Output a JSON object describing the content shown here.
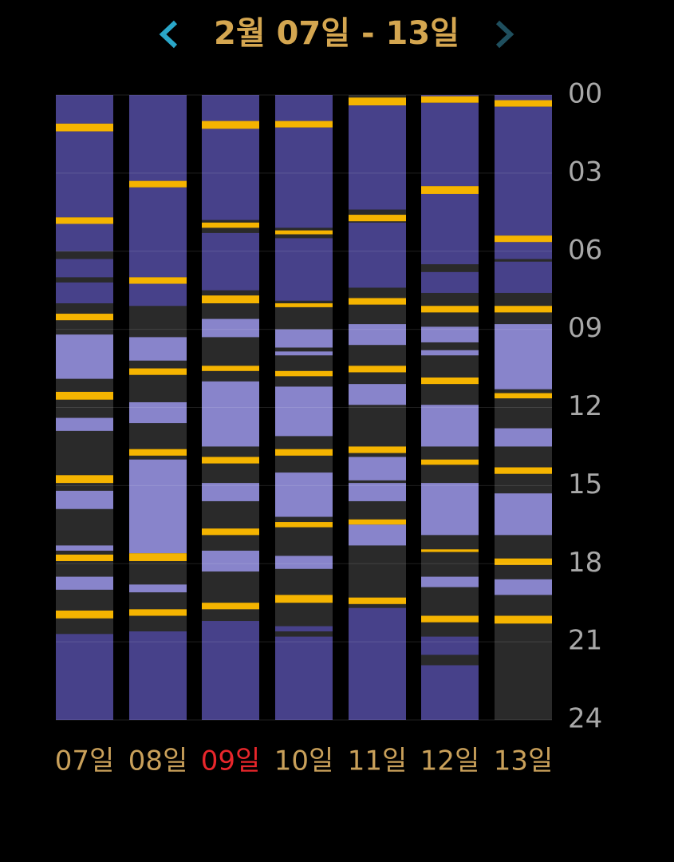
{
  "chart_data": {
    "type": "timeline",
    "title": "2월 07일 - 13일",
    "categories": [
      "07일",
      "08일",
      "09일",
      "10일",
      "11일",
      "12일",
      "13일"
    ],
    "label_colors": [
      "#c9a05a",
      "#c9a05a",
      "#e8262b",
      "#c9a05a",
      "#c9a05a",
      "#c9a05a",
      "#c9a05a"
    ],
    "background_color": "#2a2a2a",
    "colors": [
      "#47418a",
      "#8884cb",
      "#f5b400"
    ],
    "ylim": [
      0,
      24
    ],
    "yticks": [
      {
        "value": 0,
        "label": "00"
      },
      {
        "value": 3,
        "label": "03"
      },
      {
        "value": 6,
        "label": "06"
      },
      {
        "value": 9,
        "label": "09"
      },
      12,
      15,
      18,
      21,
      24
    ],
    "grid": true,
    "segments": [
      [
        [
          0,
          1.1,
          0
        ],
        [
          1.1,
          1.4,
          2
        ],
        [
          1.4,
          4.7,
          0
        ],
        [
          4.7,
          4.95,
          2
        ],
        [
          4.95,
          6.0,
          0
        ],
        [
          6.3,
          7.0,
          0
        ],
        [
          7.2,
          8.0,
          0
        ],
        [
          8.4,
          8.65,
          2
        ],
        [
          9.2,
          10.9,
          1
        ],
        [
          11.4,
          11.7,
          2
        ],
        [
          12.4,
          12.9,
          1
        ],
        [
          14.6,
          14.9,
          2
        ],
        [
          15.2,
          15.9,
          1
        ],
        [
          17.3,
          17.5,
          1
        ],
        [
          17.65,
          17.9,
          2
        ],
        [
          18.5,
          19.0,
          1
        ],
        [
          19.8,
          20.1,
          2
        ],
        [
          20.7,
          24,
          0
        ]
      ],
      [
        [
          0,
          3.3,
          0
        ],
        [
          3.3,
          3.55,
          2
        ],
        [
          3.55,
          7.0,
          0
        ],
        [
          7.0,
          7.25,
          2
        ],
        [
          7.25,
          8.1,
          0
        ],
        [
          9.3,
          10.2,
          1
        ],
        [
          10.5,
          10.75,
          2
        ],
        [
          11.8,
          12.6,
          1
        ],
        [
          13.6,
          13.85,
          2
        ],
        [
          14.0,
          17.6,
          1
        ],
        [
          17.6,
          17.9,
          2
        ],
        [
          18.8,
          19.1,
          1
        ],
        [
          19.75,
          20.0,
          2
        ],
        [
          20.6,
          24,
          0
        ]
      ],
      [
        [
          0,
          1.0,
          0
        ],
        [
          1.0,
          1.3,
          2
        ],
        [
          1.3,
          4.8,
          0
        ],
        [
          4.9,
          5.1,
          2
        ],
        [
          5.3,
          7.5,
          0
        ],
        [
          7.7,
          8.0,
          2
        ],
        [
          8.6,
          9.3,
          1
        ],
        [
          10.4,
          10.6,
          2
        ],
        [
          11.0,
          13.5,
          1
        ],
        [
          13.9,
          14.15,
          2
        ],
        [
          14.9,
          15.6,
          1
        ],
        [
          16.65,
          16.9,
          2
        ],
        [
          17.5,
          18.3,
          1
        ],
        [
          19.5,
          19.75,
          2
        ],
        [
          20.2,
          24,
          0
        ]
      ],
      [
        [
          0,
          1.0,
          0
        ],
        [
          1.0,
          1.25,
          2
        ],
        [
          1.25,
          5.1,
          0
        ],
        [
          5.2,
          5.35,
          2
        ],
        [
          5.5,
          7.9,
          0
        ],
        [
          8.0,
          8.15,
          2
        ],
        [
          9.0,
          9.7,
          1
        ],
        [
          9.85,
          10.0,
          1
        ],
        [
          10.6,
          10.8,
          2
        ],
        [
          11.2,
          13.1,
          1
        ],
        [
          13.6,
          13.85,
          2
        ],
        [
          14.5,
          16.2,
          1
        ],
        [
          16.4,
          16.6,
          2
        ],
        [
          17.7,
          18.2,
          1
        ],
        [
          19.2,
          19.5,
          2
        ],
        [
          20.4,
          20.6,
          0
        ],
        [
          20.8,
          24,
          0
        ]
      ],
      [
        [
          0.1,
          0.4,
          2
        ],
        [
          0.4,
          4.4,
          0
        ],
        [
          4.6,
          4.85,
          2
        ],
        [
          4.9,
          7.4,
          0
        ],
        [
          7.8,
          8.05,
          2
        ],
        [
          8.8,
          9.6,
          1
        ],
        [
          10.4,
          10.65,
          2
        ],
        [
          11.1,
          11.9,
          1
        ],
        [
          13.5,
          13.75,
          2
        ],
        [
          13.9,
          14.8,
          1
        ],
        [
          14.9,
          15.6,
          1
        ],
        [
          16.3,
          16.5,
          2
        ],
        [
          16.5,
          17.3,
          1
        ],
        [
          19.3,
          19.55,
          2
        ],
        [
          19.7,
          24,
          0
        ]
      ],
      [
        [
          0,
          0.05,
          0
        ],
        [
          0.05,
          0.3,
          2
        ],
        [
          0.3,
          3.5,
          0
        ],
        [
          3.5,
          3.8,
          2
        ],
        [
          3.8,
          6.5,
          0
        ],
        [
          6.8,
          7.6,
          0
        ],
        [
          8.1,
          8.35,
          2
        ],
        [
          8.9,
          9.5,
          1
        ],
        [
          9.8,
          10.0,
          1
        ],
        [
          10.85,
          11.1,
          2
        ],
        [
          11.9,
          13.5,
          1
        ],
        [
          14.0,
          14.2,
          2
        ],
        [
          14.9,
          16.9,
          1
        ],
        [
          17.45,
          17.55,
          2
        ],
        [
          18.5,
          18.9,
          1
        ],
        [
          20.0,
          20.25,
          2
        ],
        [
          20.8,
          21.5,
          0
        ],
        [
          21.9,
          24,
          0
        ]
      ],
      [
        [
          0,
          0.2,
          0
        ],
        [
          0.2,
          0.45,
          2
        ],
        [
          0.45,
          5.4,
          0
        ],
        [
          5.4,
          5.65,
          2
        ],
        [
          5.65,
          6.3,
          0
        ],
        [
          6.4,
          7.6,
          0
        ],
        [
          8.1,
          8.35,
          2
        ],
        [
          8.8,
          11.3,
          1
        ],
        [
          11.45,
          11.65,
          2
        ],
        [
          12.8,
          13.5,
          1
        ],
        [
          14.3,
          14.55,
          2
        ],
        [
          15.3,
          16.9,
          1
        ],
        [
          17.8,
          18.05,
          2
        ],
        [
          18.6,
          19.2,
          1
        ],
        [
          20.0,
          20.3,
          2
        ]
      ]
    ]
  }
}
